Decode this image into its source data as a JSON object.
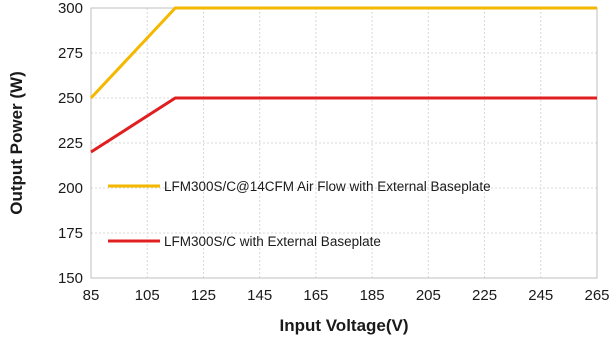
{
  "chart_data": {
    "type": "line",
    "xlabel": "Input Voltage(V)",
    "ylabel": "Output Power (W)",
    "xlim": [
      85,
      265
    ],
    "ylim": [
      150,
      300
    ],
    "xticks": [
      85,
      105,
      125,
      145,
      165,
      185,
      205,
      225,
      245,
      265
    ],
    "yticks": [
      150,
      175,
      200,
      225,
      250,
      275,
      300
    ],
    "grid": true,
    "legend_position": "inside-left",
    "series": [
      {
        "name": "LFM300S/C@14CFM Air Flow with External Baseplate",
        "color": "#f5b800",
        "x": [
          85,
          115,
          265
        ],
        "y": [
          250,
          300,
          300
        ]
      },
      {
        "name": "LFM300S/C with External Baseplate",
        "color": "#e02020",
        "x": [
          85,
          115,
          265
        ],
        "y": [
          220,
          250,
          250
        ]
      }
    ]
  }
}
